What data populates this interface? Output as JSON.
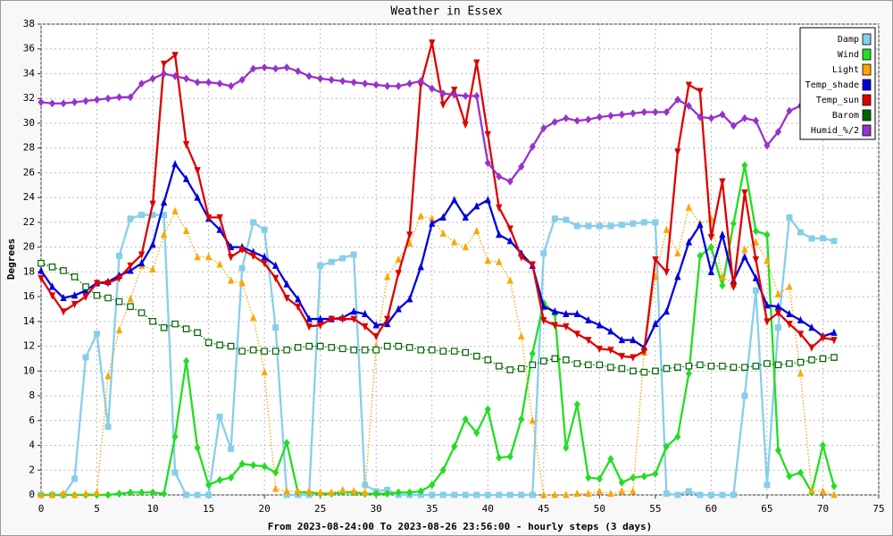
{
  "chart_data": {
    "type": "line",
    "title": "Weather in Essex",
    "y_label": "Degrees",
    "x_label": "From 2023-08-24:00 To 2023-08-26 23:56:00 - hourly steps (3 days)",
    "xlim": [
      0,
      75
    ],
    "xticks": [
      0,
      5,
      10,
      15,
      20,
      25,
      30,
      35,
      40,
      45,
      50,
      55,
      60,
      65,
      70,
      75
    ],
    "ylim": [
      0,
      38
    ],
    "yticks": [
      0,
      2,
      4,
      6,
      8,
      10,
      12,
      14,
      16,
      18,
      20,
      22,
      24,
      26,
      28,
      30,
      32,
      34,
      36,
      38
    ],
    "grid": true,
    "legend": "upper right",
    "x": [
      0,
      1,
      2,
      3,
      4,
      5,
      6,
      7,
      8,
      9,
      10,
      11,
      12,
      13,
      14,
      15,
      16,
      17,
      18,
      19,
      20,
      21,
      22,
      23,
      24,
      25,
      26,
      27,
      28,
      29,
      30,
      31,
      32,
      33,
      34,
      35,
      36,
      37,
      38,
      39,
      40,
      41,
      42,
      43,
      44,
      45,
      46,
      47,
      48,
      49,
      50,
      51,
      52,
      53,
      54,
      55,
      56,
      57,
      58,
      59,
      60,
      61,
      62,
      63,
      64,
      65,
      66,
      67,
      68,
      69,
      70,
      71
    ],
    "series": [
      {
        "name": "Damp",
        "color": "#87ceeb",
        "style": "solid",
        "marker": "square",
        "values": [
          0,
          0,
          0,
          1.3,
          11.1,
          13,
          5.5,
          19.3,
          22.3,
          22.6,
          22.6,
          22.6,
          1.8,
          0,
          0,
          0,
          6.3,
          3.7,
          18.3,
          22.0,
          21.4,
          13.5,
          0,
          0,
          0,
          18.5,
          18.8,
          19.1,
          19.4,
          0.8,
          0.3,
          0.4,
          0,
          0,
          0,
          0,
          0,
          0,
          0,
          0,
          0,
          0,
          0,
          0,
          0,
          19.5,
          22.3,
          22.2,
          21.7,
          21.7,
          21.7,
          21.7,
          21.8,
          21.9,
          22.0,
          22.0,
          0.1,
          0,
          0.3,
          0,
          0,
          0,
          0,
          8,
          16.5,
          0.8,
          13.5,
          22.4,
          21.2,
          20.7,
          20.7,
          20.5
        ]
      },
      {
        "name": "Wind",
        "color": "#22dd22",
        "style": "solid",
        "marker": "diamond",
        "values": [
          0,
          0,
          0,
          0,
          0,
          0,
          0,
          0.1,
          0.2,
          0.2,
          0.2,
          0.1,
          4.7,
          10.8,
          3.8,
          0.8,
          1.2,
          1.4,
          2.5,
          2.4,
          2.3,
          1.8,
          4.2,
          0.2,
          0.2,
          0.1,
          0.1,
          0.2,
          0.2,
          0.1,
          0.1,
          0.1,
          0.2,
          0.2,
          0.3,
          0.8,
          2,
          3.9,
          6.1,
          5,
          6.9,
          3,
          3.1,
          6.1,
          11.4,
          15.5,
          14.6,
          3.8,
          7.3,
          1.4,
          1.3,
          2.9,
          1,
          1.4,
          1.5,
          1.7,
          3.9,
          4.7,
          9.8,
          19.3,
          20,
          16.9,
          21.9,
          26.6,
          21.3,
          21.0,
          3.6,
          1.5,
          1.8,
          0.2,
          4,
          0.7
        ]
      },
      {
        "name": "Light",
        "color": "#ffa500",
        "style": "dotted",
        "marker": "triangle",
        "values": [
          0,
          0,
          0.1,
          0,
          0.1,
          0.2,
          9.6,
          13.3,
          15.8,
          18.5,
          18.2,
          21.0,
          22.9,
          21.3,
          19.2,
          19.2,
          18.6,
          17.3,
          17.1,
          14.3,
          9.9,
          0.5,
          0.3,
          0.3,
          0.3,
          0.2,
          0.2,
          0.4,
          0.3,
          0.2,
          12.0,
          17.6,
          19.0,
          20.3,
          22.5,
          22.3,
          21.1,
          20.4,
          20.0,
          21.3,
          18.9,
          18.8,
          17.3,
          12.8,
          6.0,
          0,
          0,
          0,
          0.1,
          0.1,
          0.3,
          0.1,
          0.3,
          0.3,
          11.5,
          17.6,
          21.4,
          19.5,
          23.2,
          21.9,
          22.3,
          17.6,
          17.0,
          19.8,
          20.4,
          18.9,
          16.2,
          16.8,
          9.8,
          0.4,
          0.3,
          0
        ]
      },
      {
        "name": "Temp_shade",
        "color": "#0000dd",
        "style": "solid",
        "marker": "triangle",
        "values": [
          18.1,
          16.8,
          15.9,
          16.1,
          16.5,
          17.1,
          17.2,
          17.7,
          18.1,
          18.7,
          20.2,
          23.6,
          26.7,
          25.5,
          24.0,
          22.3,
          21.4,
          20.0,
          20.0,
          19.6,
          19.2,
          18.5,
          17.0,
          15.8,
          14.2,
          14.2,
          14.2,
          14.3,
          14.8,
          14.6,
          13.7,
          13.8,
          15.0,
          15.8,
          18.4,
          21.9,
          22.4,
          23.8,
          22.4,
          23.3,
          23.8,
          21.0,
          20.5,
          19.5,
          18.5,
          15.2,
          14.8,
          14.6,
          14.6,
          14.1,
          13.7,
          13.2,
          12.5,
          12.5,
          11.9,
          13.8,
          14.8,
          17.6,
          20.4,
          21.8,
          18.0,
          21.0,
          17.3,
          19.2,
          17.5,
          15.3,
          15.2,
          14.6,
          14.1,
          13.5,
          12.8,
          13.1
        ]
      },
      {
        "name": "Temp_sun",
        "color": "#dd0000",
        "style": "solid",
        "marker": "triangle-down",
        "values": [
          17.5,
          16.1,
          14.8,
          15.4,
          16.0,
          17.1,
          17.1,
          17.5,
          18.5,
          19.4,
          23.5,
          34.8,
          35.5,
          28.3,
          26.2,
          22.4,
          22.4,
          19.2,
          19.8,
          19.3,
          18.7,
          17.5,
          15.9,
          15.2,
          13.6,
          13.7,
          14.2,
          14.2,
          14.2,
          13.6,
          12.8,
          14.2,
          17.9,
          21.0,
          33.1,
          36.5,
          31.5,
          32.7,
          29.9,
          34.9,
          29.1,
          23.2,
          21.5,
          19.2,
          18.6,
          14.1,
          13.7,
          13.6,
          13.0,
          12.5,
          11.8,
          11.7,
          11.2,
          11.1,
          11.6,
          19.0,
          18.0,
          27.7,
          33.1,
          32.6,
          20.8,
          25.3,
          16.8,
          24.4,
          19.0,
          14.0,
          14.7,
          13.8,
          13.0,
          11.9,
          12.7,
          12.5
        ]
      },
      {
        "name": "Barom",
        "color": "#006400",
        "style": "dotted",
        "marker": "open-square",
        "values": [
          18.7,
          18.4,
          18.1,
          17.6,
          16.8,
          16.1,
          15.9,
          15.6,
          15.2,
          14.7,
          14.0,
          13.5,
          13.8,
          13.4,
          13.1,
          12.3,
          12.1,
          12.0,
          11.6,
          11.7,
          11.6,
          11.6,
          11.7,
          11.9,
          12.0,
          12.0,
          11.9,
          11.8,
          11.7,
          11.7,
          11.7,
          12.0,
          12.0,
          11.9,
          11.7,
          11.7,
          11.6,
          11.6,
          11.5,
          11.2,
          10.9,
          10.4,
          10.1,
          10.2,
          10.5,
          10.8,
          11.0,
          10.9,
          10.6,
          10.5,
          10.5,
          10.3,
          10.2,
          10.0,
          9.9,
          10.0,
          10.2,
          10.3,
          10.4,
          10.5,
          10.4,
          10.4,
          10.3,
          10.3,
          10.4,
          10.6,
          10.5,
          10.6,
          10.7,
          10.9,
          11.0,
          11.1
        ]
      },
      {
        "name": "Humid_%/2",
        "color": "#9932cc",
        "style": "solid",
        "marker": "diamond",
        "values": [
          31.7,
          31.6,
          31.6,
          31.7,
          31.8,
          31.9,
          32.0,
          32.1,
          32.1,
          33.2,
          33.6,
          34.0,
          33.8,
          33.6,
          33.3,
          33.3,
          33.2,
          33.0,
          33.5,
          34.4,
          34.5,
          34.4,
          34.5,
          34.2,
          33.8,
          33.6,
          33.5,
          33.4,
          33.3,
          33.2,
          33.1,
          33.0,
          33.0,
          33.2,
          33.4,
          32.8,
          32.4,
          32.3,
          32.2,
          32.2,
          26.8,
          25.7,
          25.3,
          26.5,
          28.1,
          29.6,
          30.1,
          30.4,
          30.2,
          30.3,
          30.5,
          30.6,
          30.7,
          30.8,
          30.9,
          30.9,
          30.9,
          31.9,
          31.4,
          30.5,
          30.4,
          30.7,
          29.8,
          30.4,
          30.2,
          28.2,
          29.3,
          31.0,
          31.4,
          null,
          null,
          null
        ]
      }
    ]
  }
}
